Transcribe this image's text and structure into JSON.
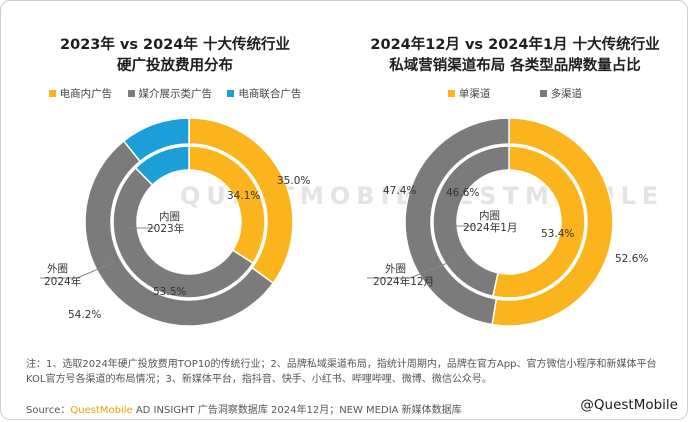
{
  "colors": {
    "yellow": "#FBB41C",
    "gray": "#7B7B7B",
    "blue": "#1B9FD9",
    "innerGray": "#8A8A8A",
    "title": "#1E1E1E"
  },
  "watermark_bg": "QUESTMOBILE",
  "left": {
    "title1": "2023年 vs 2024年 十大传统行业",
    "title2": "硬广投放费用分布",
    "legend": [
      "电商内广告",
      "媒介展示类广告",
      "电商联合广告"
    ],
    "inner_label": [
      "内圈",
      "2023年"
    ],
    "outer_label": [
      "外圈",
      "2024年"
    ],
    "pct_labels": {
      "inner_yellow": "34.1%",
      "outer_yellow": "35.0%",
      "inner_gray": "53.5%",
      "outer_gray": "54.2%"
    }
  },
  "right": {
    "title1": "2024年12月 vs 2024年1月 十大传统行业",
    "title2": "私域营销渠道布局 各类型品牌数量占比",
    "legend": [
      "单渠道",
      "多渠道"
    ],
    "inner_label": [
      "内圈",
      "2024年1月"
    ],
    "outer_label": [
      "外圈",
      "2024年12月"
    ],
    "pct_labels": {
      "inner_yellow": "53.4%",
      "outer_yellow": "52.6%",
      "inner_gray": "46.6%",
      "outer_gray": "47.4%"
    }
  },
  "chart_data": [
    {
      "type": "pie",
      "title": "2023年 vs 2024年 十大传统行业 硬广投放费用分布",
      "categories": [
        "电商内广告",
        "媒介展示类广告",
        "电商联合广告"
      ],
      "series": [
        {
          "name": "外圈 2024年",
          "values": [
            35.0,
            54.2,
            10.8
          ]
        },
        {
          "name": "内圈 2023年",
          "values": [
            34.1,
            53.5,
            12.4
          ]
        }
      ],
      "legend": "top"
    },
    {
      "type": "pie",
      "title": "2024年12月 vs 2024年1月 十大传统行业 私域营销渠道布局 各类型品牌数量占比",
      "categories": [
        "单渠道",
        "多渠道"
      ],
      "series": [
        {
          "name": "外圈 2024年12月",
          "values": [
            52.6,
            47.4
          ]
        },
        {
          "name": "内圈 2024年1月",
          "values": [
            53.4,
            46.6
          ]
        }
      ],
      "legend": "top"
    }
  ],
  "footnote": "注：1、选取2024年硬广投放费用TOP10的传统行业；2、品牌私域渠道布局，指统计周期内，品牌在官方App、官方微信小程序和新媒体平台KOL官方号各渠道的布局情况；3、新媒体平台，指抖音、快手、小红书、哔哩哔哩、微博、微信公众号。",
  "source": {
    "prefix": "Source：",
    "brand": "QuestMobile",
    "rest": " AD INSIGHT 广告洞察数据库 2024年12月；NEW MEDIA 新媒体数据库"
  },
  "watermark": "@QuestMobile"
}
